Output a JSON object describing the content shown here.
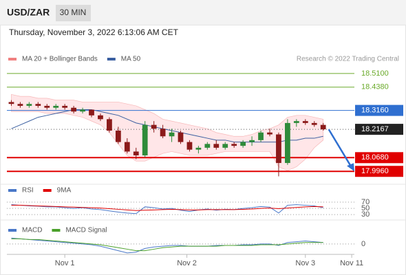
{
  "header": {
    "symbol": "USD/ZAR",
    "interval": "30 MIN",
    "timestamp": "Thursday, November 3, 2022 6:13:06 AM CET"
  },
  "credit": "Research © 2022 Trading Central",
  "chart_data": [
    {
      "type": "candlestick",
      "legend": [
        {
          "name": "MA 20 + Bollinger Bands",
          "color": "#f08080"
        },
        {
          "name": "MA 50",
          "color": "#3a5fa0"
        }
      ],
      "ylim": [
        17.95,
        18.625
      ],
      "xlim": [
        -0.5,
        38.5
      ],
      "xticks": [
        {
          "value": 6,
          "label": "Nov 1"
        },
        {
          "value": 19.7,
          "label": "Nov 2"
        },
        {
          "value": 33,
          "label": "Nov 3"
        },
        {
          "value": 38.2,
          "label": "Nov 11"
        }
      ],
      "up_color": "#2e8b3a",
      "down_color": "#8b1a1a",
      "levels": [
        {
          "value": 18.51,
          "label": "18.5100",
          "color": "#6aaa2a",
          "box": false
        },
        {
          "value": 18.438,
          "label": "18.4380",
          "color": "#6aaa2a",
          "box": false
        },
        {
          "value": 18.316,
          "label": "18.3160",
          "color": "#2f6fd0",
          "box": true
        },
        {
          "value": 18.2167,
          "label": "18.2167",
          "color": "#222222",
          "box": true
        },
        {
          "value": 18.068,
          "label": "18.0680",
          "color": "#e00000",
          "box": true
        },
        {
          "value": 17.996,
          "label": "17.9960",
          "color": "#e00000",
          "box": true
        }
      ],
      "ohlc": [
        [
          18.36,
          18.37,
          18.34,
          18.35
        ],
        [
          18.35,
          18.36,
          18.33,
          18.34
        ],
        [
          18.34,
          18.36,
          18.33,
          18.35
        ],
        [
          18.35,
          18.36,
          18.33,
          18.34
        ],
        [
          18.34,
          18.35,
          18.32,
          18.33
        ],
        [
          18.33,
          18.35,
          18.32,
          18.34
        ],
        [
          18.34,
          18.35,
          18.32,
          18.33
        ],
        [
          18.33,
          18.34,
          18.3,
          18.31
        ],
        [
          18.31,
          18.33,
          18.3,
          18.32
        ],
        [
          18.32,
          18.32,
          18.28,
          18.29
        ],
        [
          18.29,
          18.3,
          18.26,
          18.27
        ],
        [
          18.27,
          18.28,
          18.2,
          18.21
        ],
        [
          18.21,
          18.23,
          18.14,
          18.15
        ],
        [
          18.15,
          18.17,
          18.09,
          18.1
        ],
        [
          18.1,
          18.12,
          18.06,
          18.08
        ],
        [
          18.08,
          18.26,
          18.07,
          18.24
        ],
        [
          18.24,
          18.26,
          18.2,
          18.22
        ],
        [
          18.22,
          18.24,
          18.17,
          18.18
        ],
        [
          18.18,
          18.22,
          18.15,
          18.2
        ],
        [
          18.2,
          18.21,
          18.14,
          18.15
        ],
        [
          18.15,
          18.16,
          18.1,
          18.11
        ],
        [
          18.11,
          18.13,
          18.09,
          18.12
        ],
        [
          18.12,
          18.15,
          18.11,
          18.14
        ],
        [
          18.14,
          18.16,
          18.11,
          18.12
        ],
        [
          18.12,
          18.15,
          18.11,
          18.14
        ],
        [
          18.14,
          18.15,
          18.12,
          18.13
        ],
        [
          18.13,
          18.16,
          18.12,
          18.15
        ],
        [
          18.15,
          18.18,
          18.13,
          18.16
        ],
        [
          18.16,
          18.21,
          18.15,
          18.2
        ],
        [
          18.2,
          18.22,
          18.18,
          18.19
        ],
        [
          18.19,
          18.2,
          17.97,
          18.04
        ],
        [
          18.04,
          18.27,
          18.03,
          18.25
        ],
        [
          18.25,
          18.27,
          18.23,
          18.26
        ],
        [
          18.26,
          18.27,
          18.24,
          18.25
        ],
        [
          18.25,
          18.26,
          18.23,
          18.24
        ],
        [
          18.24,
          18.25,
          18.21,
          18.2167
        ]
      ],
      "ma50": [
        18.22,
        18.24,
        18.26,
        18.28,
        18.29,
        18.3,
        18.31,
        18.32,
        18.32,
        18.32,
        18.31,
        18.3,
        18.29,
        18.27,
        18.25,
        18.24,
        18.23,
        18.22,
        18.21,
        18.2,
        18.19,
        18.18,
        18.17,
        18.16,
        18.16,
        18.15,
        18.15,
        18.15,
        18.15,
        18.15,
        18.15,
        18.16,
        18.16,
        18.17,
        18.17,
        18.18
      ],
      "band_upper": [
        18.4,
        18.39,
        18.39,
        18.38,
        18.38,
        18.37,
        18.37,
        18.37,
        18.36,
        18.36,
        18.36,
        18.36,
        18.36,
        18.35,
        18.34,
        18.32,
        18.3,
        18.27,
        18.26,
        18.25,
        18.24,
        18.23,
        18.22,
        18.2,
        18.19,
        18.18,
        18.18,
        18.19,
        18.21,
        18.22,
        18.24,
        18.28,
        18.29,
        18.29,
        18.28,
        18.27
      ],
      "band_lower": [
        18.31,
        18.31,
        18.31,
        18.31,
        18.3,
        18.3,
        18.3,
        18.29,
        18.28,
        18.26,
        18.24,
        18.2,
        18.14,
        18.08,
        18.05,
        18.05,
        18.07,
        18.09,
        18.1,
        18.09,
        18.08,
        18.08,
        18.08,
        18.09,
        18.1,
        18.1,
        18.1,
        18.1,
        18.1,
        18.1,
        18.02,
        18.0,
        18.02,
        18.06,
        18.12,
        18.16
      ]
    },
    {
      "type": "line",
      "ylim": [
        17,
        90
      ],
      "yticks": [
        70,
        50,
        30
      ],
      "series": [
        {
          "name": "RSI",
          "color": "#4a78c8",
          "values": [
            62,
            60,
            58,
            57,
            55,
            55,
            52,
            50,
            52,
            48,
            46,
            42,
            38,
            35,
            33,
            55,
            52,
            48,
            50,
            44,
            40,
            45,
            48,
            44,
            47,
            46,
            50,
            52,
            56,
            54,
            35,
            60,
            62,
            60,
            58,
            52
          ]
        },
        {
          "name": "9MA",
          "color": "#e00000",
          "values": [
            60,
            60,
            59,
            58,
            57,
            56,
            55,
            54,
            53,
            52,
            51,
            49,
            47,
            45,
            43,
            44,
            45,
            46,
            47,
            46,
            45,
            45,
            46,
            46,
            46,
            46,
            47,
            48,
            50,
            51,
            49,
            51,
            53,
            55,
            56,
            55
          ]
        }
      ]
    },
    {
      "type": "line",
      "ylim": [
        -0.014,
        0.011
      ],
      "yticks": [
        0
      ],
      "series": [
        {
          "name": "MACD",
          "color": "#4a78c8",
          "values": [
            0.008,
            0.007,
            0.006,
            0.005,
            0.004,
            0.003,
            0.002,
            0.001,
            0,
            -0.001,
            -0.003,
            -0.006,
            -0.009,
            -0.012,
            -0.011,
            -0.006,
            -0.004,
            -0.003,
            -0.002,
            -0.002,
            -0.003,
            -0.003,
            -0.003,
            -0.002,
            -0.002,
            -0.002,
            -0.001,
            -0.001,
            0,
            0,
            -0.002,
            0.002,
            0.003,
            0.004,
            0.003,
            0.002
          ]
        },
        {
          "name": "MACD Signal",
          "color": "#4aa02a",
          "values": [
            0.007,
            0.007,
            0.006,
            0.006,
            0.005,
            0.004,
            0.003,
            0.002,
            0.001,
            0,
            -0.001,
            -0.003,
            -0.005,
            -0.007,
            -0.009,
            -0.009,
            -0.007,
            -0.005,
            -0.004,
            -0.003,
            -0.003,
            -0.003,
            -0.003,
            -0.003,
            -0.002,
            -0.002,
            -0.002,
            -0.002,
            -0.001,
            -0.001,
            -0.001,
            0,
            0.001,
            0.002,
            0.002,
            0.002
          ]
        }
      ]
    }
  ]
}
